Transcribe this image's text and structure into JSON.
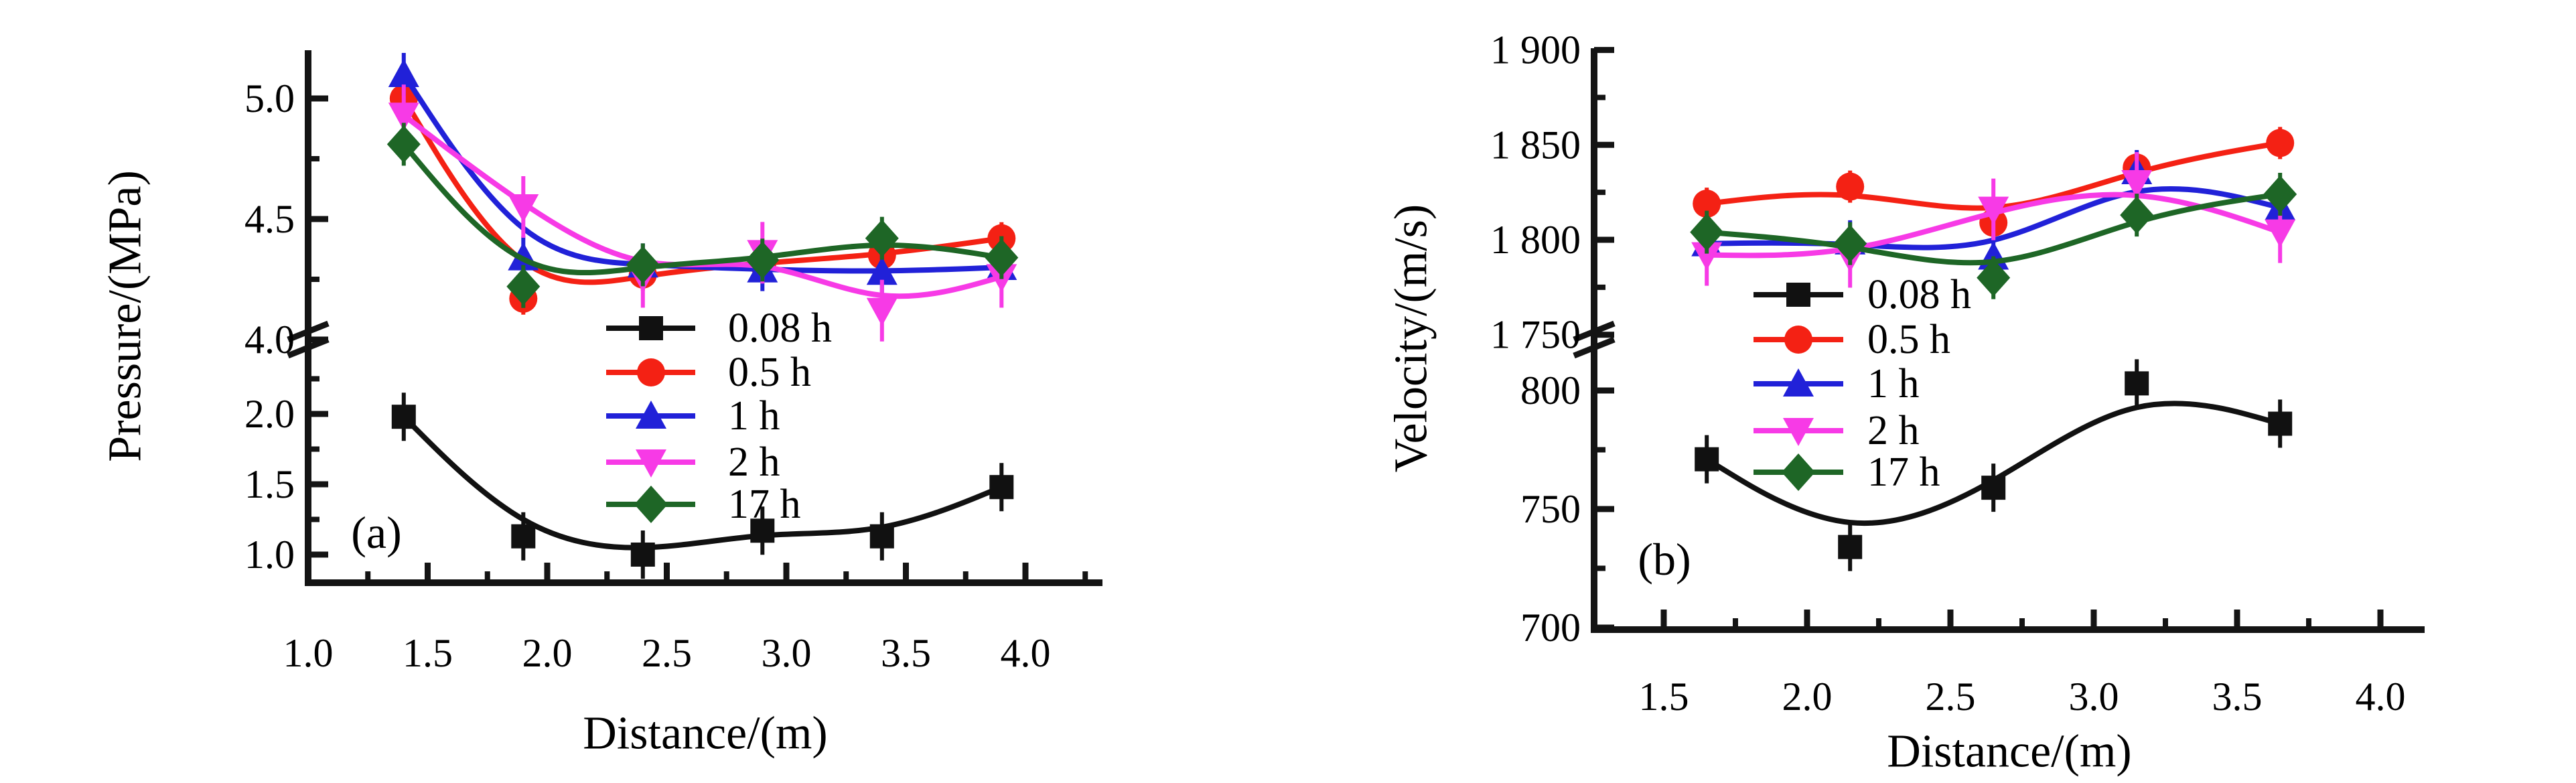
{
  "figure": {
    "background": "#ffffff"
  },
  "palette": {
    "black": "#111111",
    "red": "#f42114",
    "blue": "#2121d8",
    "magenta": "#f73ae6",
    "green": "#1e6626",
    "axis": "#141414"
  },
  "chart_data": [
    {
      "type": "line",
      "panel_label": "(a)",
      "xlabel": "Distance/(m)",
      "ylabel": "Pressure/(MPa)",
      "x_axis": {
        "min": 1.0,
        "max": 4.3,
        "major_ticks": [
          1.0,
          1.5,
          2.0,
          2.5,
          3.0,
          3.5,
          4.0
        ],
        "major_labels": [
          "1.0",
          "1.5",
          "2.0",
          "2.5",
          "3.0",
          "3.5",
          "4.0"
        ],
        "minor_ticks": [
          1.25,
          1.75,
          2.25,
          2.75,
          3.25,
          3.75,
          4.25
        ]
      },
      "y_axis": {
        "broken": true,
        "upper": {
          "range": [
            4.0,
            5.2
          ],
          "major_ticks": [
            5.0,
            4.5,
            4.0
          ],
          "major_labels": [
            "5.0",
            "4.5",
            "4.0"
          ],
          "minor_ticks": [
            4.75,
            4.25
          ]
        },
        "lower": {
          "range": [
            0.8,
            2.26
          ],
          "major_ticks": [
            2.0,
            1.5,
            1.0
          ],
          "major_labels": [
            "2.0",
            "1.5",
            "1.0"
          ],
          "minor_ticks": [
            2.25,
            1.75,
            1.25
          ]
        }
      },
      "x": [
        1.4,
        1.9,
        2.4,
        2.9,
        3.4,
        3.9
      ],
      "series": [
        {
          "name": "0.08 h",
          "color": "black",
          "marker": "square",
          "segment": "lower",
          "values": [
            1.98,
            1.13,
            1.0,
            1.17,
            1.13,
            1.48
          ]
        },
        {
          "name": "0.5 h",
          "color": "red",
          "marker": "circle",
          "segment": "upper",
          "values": [
            5.0,
            4.17,
            4.27,
            4.32,
            4.35,
            4.42
          ]
        },
        {
          "name": "1 h",
          "color": "blue",
          "marker": "triangle-up",
          "segment": "upper",
          "values": [
            5.1,
            4.34,
            4.31,
            4.29,
            4.28,
            4.3
          ]
        },
        {
          "name": "2 h",
          "color": "magenta",
          "marker": "triangle-down",
          "segment": "upper",
          "values": [
            4.93,
            4.55,
            4.26,
            4.36,
            4.12,
            4.26
          ]
        },
        {
          "name": "17 h",
          "color": "green",
          "marker": "diamond",
          "segment": "upper",
          "values": [
            4.81,
            4.22,
            4.31,
            4.33,
            4.42,
            4.34
          ]
        }
      ],
      "legend": {
        "labels": [
          "0.08 h",
          "0.5 h",
          "1 h",
          "2 h",
          "17 h"
        ],
        "position": "inside-center"
      }
    },
    {
      "type": "line",
      "panel_label": "(b)",
      "xlabel": "Distance/(m)",
      "ylabel": "Velocity/(m/s)",
      "x_axis": {
        "min": 1.25,
        "max": 4.15,
        "major_ticks": [
          1.5,
          2.0,
          2.5,
          3.0,
          3.5,
          4.0
        ],
        "major_labels": [
          "1.5",
          "2.0",
          "2.5",
          "3.0",
          "3.5",
          "4.0"
        ],
        "minor_ticks": [
          1.75,
          2.25,
          2.75,
          3.25,
          3.75
        ]
      },
      "y_axis": {
        "broken": true,
        "upper": {
          "range": [
            1750,
            1900
          ],
          "major_ticks": [
            1900,
            1850,
            1800,
            1750
          ],
          "major_labels": [
            "1 900",
            "1 850",
            "1 800",
            "1 750"
          ],
          "minor_ticks": [
            1875,
            1825,
            1775
          ]
        },
        "lower": {
          "range": [
            700,
            820
          ],
          "major_ticks": [
            800,
            750,
            700
          ],
          "major_labels": [
            "800",
            "750",
            "700"
          ],
          "minor_ticks": [
            775,
            725
          ]
        }
      },
      "x": [
        1.65,
        2.15,
        2.65,
        3.15,
        3.65
      ],
      "series": [
        {
          "name": "0.08 h",
          "color": "black",
          "marker": "square",
          "segment": "lower",
          "values": [
            771,
            734,
            759,
            803,
            786
          ]
        },
        {
          "name": "0.5 h",
          "color": "red",
          "marker": "circle",
          "segment": "upper",
          "values": [
            1819,
            1828,
            1809,
            1838,
            1851
          ]
        },
        {
          "name": "1 h",
          "color": "blue",
          "marker": "triangle-up",
          "segment": "upper",
          "values": [
            1798,
            1799,
            1791,
            1836,
            1817
          ]
        },
        {
          "name": "2 h",
          "color": "magenta",
          "marker": "triangle-down",
          "segment": "upper",
          "values": [
            1792,
            1791,
            1816,
            1830,
            1804
          ]
        },
        {
          "name": "17 h",
          "color": "green",
          "marker": "diamond",
          "segment": "upper",
          "values": [
            1804,
            1798,
            1780,
            1813,
            1824
          ]
        }
      ],
      "legend": {
        "labels": [
          "0.08 h",
          "0.5 h",
          "1 h",
          "2 h",
          "17 h"
        ],
        "position": "inside-center"
      }
    }
  ]
}
